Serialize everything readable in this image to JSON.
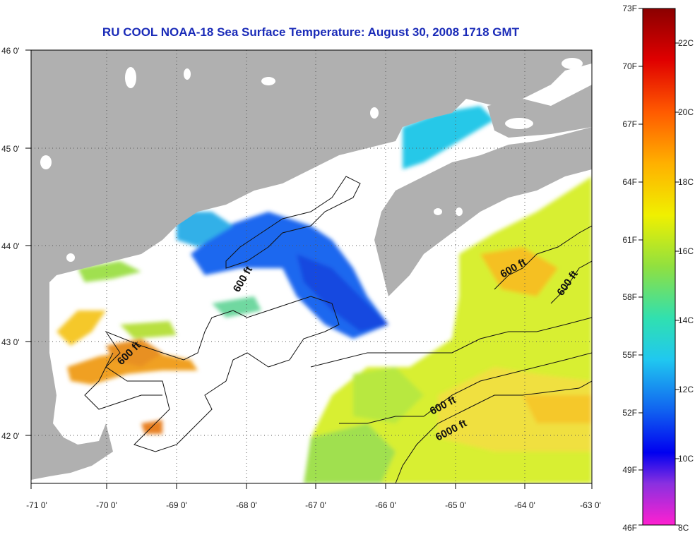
{
  "title": "RU COOL  NOAA-18  Sea Surface Temperature:  August 30, 2008 1718 GMT",
  "map": {
    "lon_labels": [
      "-71 0'",
      "-70 0'",
      "-69 0'",
      "-68 0'",
      "-67 0'",
      "-66 0'",
      "-65 0'",
      "-64 0'",
      "-63 0'"
    ],
    "lat_labels": [
      "46 0'",
      "45 0'",
      "44 0'",
      "43 0'",
      "42 0'"
    ],
    "contour_labels": [
      "600 ft",
      "600 ft",
      "600 ft",
      "600 ft",
      "600 ft",
      "6000 ft"
    ],
    "colors": {
      "land": "#b0b0b0",
      "cloud": "#ffffff",
      "cold": "#1a5cf0",
      "warm": "#f5a31a"
    }
  },
  "colorbar": {
    "fahrenheit_labels": [
      "73F",
      "70F",
      "67F",
      "64F",
      "61F",
      "58F",
      "55F",
      "52F",
      "49F",
      "46F"
    ],
    "celsius_labels": [
      "22C",
      "20C",
      "18C",
      "16C",
      "14C",
      "12C",
      "10C",
      "8C"
    ]
  }
}
